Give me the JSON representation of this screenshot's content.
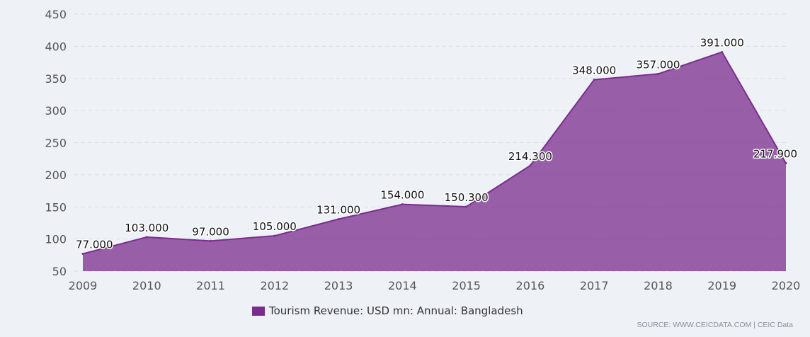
{
  "chart_data": {
    "type": "area",
    "title": "",
    "xlabel": "",
    "ylabel": "",
    "ylim": [
      50,
      450
    ],
    "yticks": [
      50,
      100,
      150,
      200,
      250,
      300,
      350,
      400,
      450
    ],
    "grid": true,
    "categories": [
      "2009",
      "2010",
      "2011",
      "2012",
      "2013",
      "2014",
      "2015",
      "2016",
      "2017",
      "2018",
      "2019",
      "2020"
    ],
    "series": [
      {
        "name": "Tourism Revenue: USD mn: Annual: Bangladesh",
        "values": [
          77.0,
          103.0,
          97.0,
          105.0,
          131.0,
          154.0,
          150.3,
          214.3,
          348.0,
          357.0,
          391.0,
          217.9
        ],
        "labels": [
          "77.000",
          "103.000",
          "97.000",
          "105.000",
          "131.000",
          "154.000",
          "150.300",
          "214.300",
          "348.000",
          "357.000",
          "391.000",
          "217.900"
        ],
        "color": "#7b2d8e"
      }
    ],
    "legend_position": "bottom-center"
  },
  "legend": {
    "label": "Tourism Revenue: USD mn: Annual: Bangladesh"
  },
  "source": "SOURCE: WWW.CEICDATA.COM | CEIC Data",
  "colors": {
    "series": "#7b2d8e",
    "background": "#eef2f7",
    "grid": "#d8dee6"
  }
}
